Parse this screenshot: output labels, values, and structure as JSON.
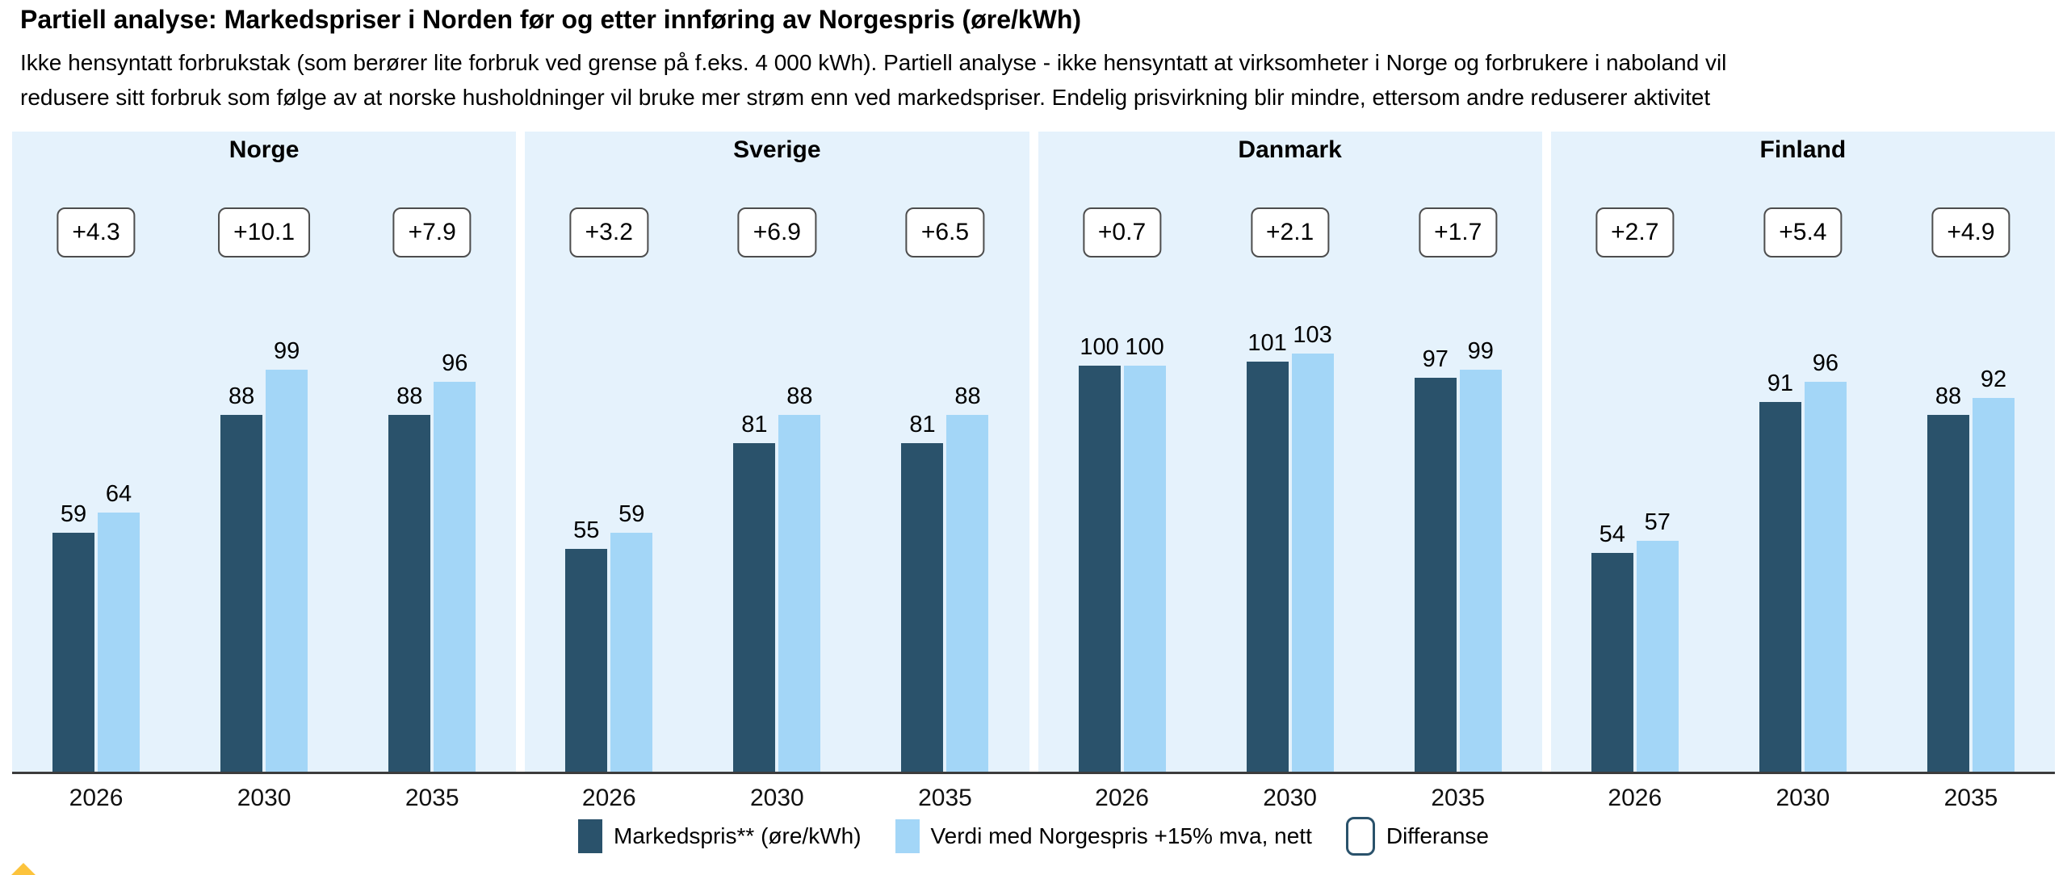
{
  "header": {
    "title": "Partiell analyse: Markedspriser i Norden før og etter innføring av Norgespris (øre/kWh)",
    "subtitle_lines": [
      "Ikke hensyntatt forbrukstak (som berører lite forbruk ved grense på f.eks. 4 000 kWh). Partiell analyse - ikke hensyntatt at virksomheter i Norge og forbrukere i naboland vil",
      "redusere sitt forbruk som følge av at norske husholdninger vil bruke mer strøm enn ved markedspriser. Endelig prisvirkning blir mindre, ettersom andre reduserer aktivitet"
    ]
  },
  "chart_data": {
    "type": "bar",
    "categories": [
      "2026",
      "2030",
      "2035"
    ],
    "panels": [
      {
        "name": "Norge",
        "diffs": [
          "+4.3",
          "+10.1",
          "+7.9"
        ],
        "series": [
          {
            "name": "Markedspris** (øre/kWh)",
            "values": [
              59,
              88,
              88
            ]
          },
          {
            "name": "Verdi med Norgespris +15% mva, nett",
            "values": [
              64,
              99,
              96
            ]
          }
        ]
      },
      {
        "name": "Sverige",
        "diffs": [
          "+3.2",
          "+6.9",
          "+6.5"
        ],
        "series": [
          {
            "name": "Markedspris** (øre/kWh)",
            "values": [
              55,
              81,
              81
            ]
          },
          {
            "name": "Verdi med Norgespris +15% mva, nett",
            "values": [
              59,
              88,
              88
            ]
          }
        ]
      },
      {
        "name": "Danmark",
        "diffs": [
          "+0.7",
          "+2.1",
          "+1.7"
        ],
        "series": [
          {
            "name": "Markedspris** (øre/kWh)",
            "values": [
              100,
              101,
              97
            ]
          },
          {
            "name": "Verdi med Norgespris +15% mva, nett",
            "values": [
              100,
              103,
              99
            ]
          }
        ]
      },
      {
        "name": "Finland",
        "diffs": [
          "+2.7",
          "+5.4",
          "+4.9"
        ],
        "series": [
          {
            "name": "Markedspris** (øre/kWh)",
            "values": [
              54,
              91,
              88
            ]
          },
          {
            "name": "Verdi med Norgespris +15% mva, nett",
            "values": [
              57,
              96,
              92
            ]
          }
        ]
      }
    ],
    "ylim": [
      0,
      110
    ],
    "colors": {
      "markedspris": "#2a526b",
      "norgespris": "#a3d6f7",
      "panel_bg": "#e5f2fc",
      "axis": "#3c3c3c"
    },
    "legend": [
      {
        "label": "Markedspris** (øre/kWh)",
        "swatch": "dark"
      },
      {
        "label": "Verdi med Norgespris +15% mva, nett",
        "swatch": "light"
      },
      {
        "label": "Differanse",
        "swatch": "outline"
      }
    ]
  }
}
